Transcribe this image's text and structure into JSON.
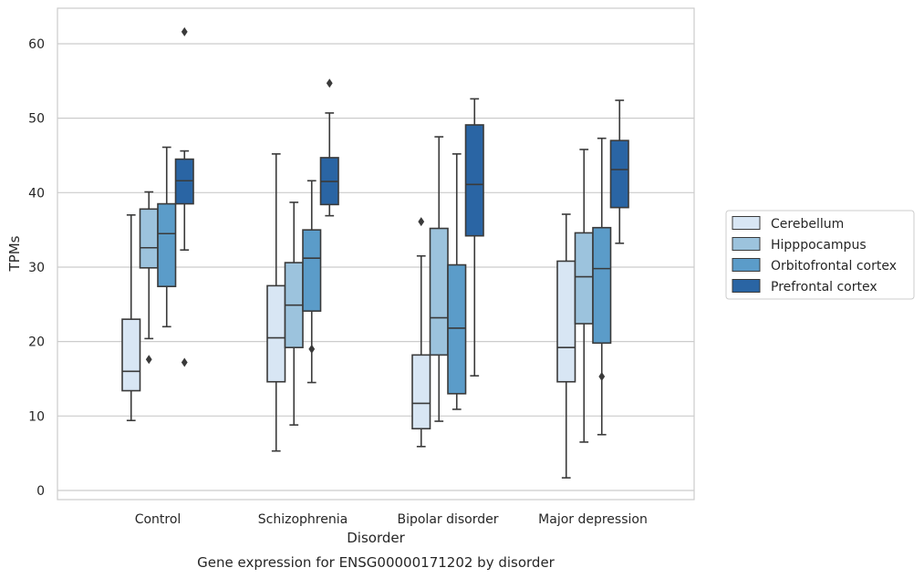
{
  "chart_data": {
    "type": "box",
    "title": "",
    "caption": "Gene expression for ENSG00000171202 by disorder",
    "xlabel": "Disorder",
    "ylabel": "TPMs",
    "ylim": [
      -1.2,
      64.8
    ],
    "yticks": [
      0,
      10,
      20,
      30,
      40,
      50,
      60
    ],
    "grid": "horizontal",
    "legend_position": "right",
    "categories": [
      "Control",
      "Schizophrenia",
      "Bipolar disorder",
      "Major depression"
    ],
    "series": [
      {
        "name": "Cerebellum",
        "color": "#d8e6f4",
        "boxes": [
          {
            "whislo": 9.4,
            "q1": 13.4,
            "med": 16.0,
            "q3": 23.0,
            "whishi": 37.0,
            "fliers": []
          },
          {
            "whislo": 5.3,
            "q1": 14.6,
            "med": 20.5,
            "q3": 27.5,
            "whishi": 45.2,
            "fliers": []
          },
          {
            "whislo": 5.9,
            "q1": 8.3,
            "med": 11.7,
            "q3": 18.2,
            "whishi": 31.5,
            "fliers": [
              36.1
            ]
          },
          {
            "whislo": 1.7,
            "q1": 14.6,
            "med": 19.2,
            "q3": 30.8,
            "whishi": 37.1,
            "fliers": []
          }
        ]
      },
      {
        "name": "Hipppocampus",
        "color": "#9cc3dd",
        "boxes": [
          {
            "whislo": 20.4,
            "q1": 29.9,
            "med": 32.6,
            "q3": 37.8,
            "whishi": 40.1,
            "fliers": [
              17.6
            ]
          },
          {
            "whislo": 8.8,
            "q1": 19.2,
            "med": 24.9,
            "q3": 30.6,
            "whishi": 38.7,
            "fliers": []
          },
          {
            "whislo": 9.3,
            "q1": 18.2,
            "med": 23.2,
            "q3": 35.2,
            "whishi": 47.5,
            "fliers": []
          },
          {
            "whislo": 6.5,
            "q1": 22.4,
            "med": 28.7,
            "q3": 34.6,
            "whishi": 45.8,
            "fliers": []
          }
        ]
      },
      {
        "name": "Orbitofrontal cortex",
        "color": "#5b9cc9",
        "boxes": [
          {
            "whislo": 22.0,
            "q1": 27.4,
            "med": 34.5,
            "q3": 38.5,
            "whishi": 46.1,
            "fliers": []
          },
          {
            "whislo": 14.5,
            "q1": 24.1,
            "med": 31.2,
            "q3": 35.0,
            "whishi": 41.6,
            "fliers": [
              19.0
            ]
          },
          {
            "whislo": 10.9,
            "q1": 13.0,
            "med": 21.8,
            "q3": 30.3,
            "whishi": 45.2,
            "fliers": []
          },
          {
            "whislo": 7.5,
            "q1": 19.8,
            "med": 29.8,
            "q3": 35.3,
            "whishi": 47.3,
            "fliers": [
              15.3
            ]
          }
        ]
      },
      {
        "name": "Prefrontal cortex",
        "color": "#2a65a4",
        "boxes": [
          {
            "whislo": 32.3,
            "q1": 38.5,
            "med": 41.6,
            "q3": 44.5,
            "whishi": 45.6,
            "fliers": [
              61.6,
              17.2
            ]
          },
          {
            "whislo": 36.9,
            "q1": 38.4,
            "med": 41.5,
            "q3": 44.7,
            "whishi": 50.7,
            "fliers": [
              54.7
            ]
          },
          {
            "whislo": 15.4,
            "q1": 34.2,
            "med": 41.1,
            "q3": 49.1,
            "whishi": 52.6,
            "fliers": []
          },
          {
            "whislo": 33.2,
            "q1": 38.0,
            "med": 43.1,
            "q3": 47.0,
            "whishi": 52.4,
            "fliers": []
          }
        ]
      }
    ]
  }
}
